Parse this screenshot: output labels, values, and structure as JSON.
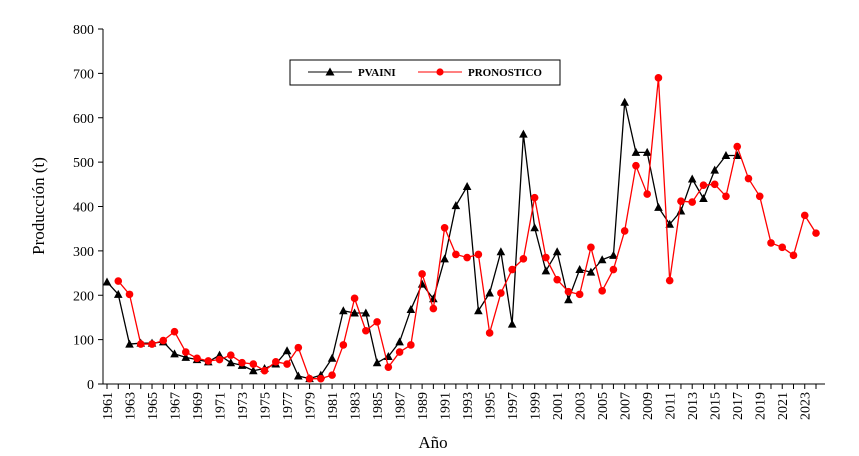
{
  "chart_data": {
    "type": "line",
    "xlabel": "Año",
    "ylabel": "Producción (t)",
    "ylim": [
      0,
      800
    ],
    "yticks": [
      0,
      100,
      200,
      300,
      400,
      500,
      600,
      700,
      800
    ],
    "xlim": [
      1961,
      2023
    ],
    "xtick_labels": [
      "1961",
      "1963",
      "1965",
      "1967",
      "1969",
      "1971",
      "1973",
      "1975",
      "1977",
      "1979",
      "1981",
      "1983",
      "1985",
      "1987",
      "1989",
      "1991",
      "1993",
      "1995",
      "1997",
      "1999",
      "2001",
      "2003",
      "2005",
      "2007",
      "2009",
      "2011",
      "2013",
      "2015",
      "2017",
      "2019",
      "2021",
      "2023"
    ],
    "grid": false,
    "legend_position": "top-center",
    "series": [
      {
        "name": "PVAINI",
        "color": "#000000",
        "marker": "triangle",
        "x": [
          1961,
          1962,
          1963,
          1964,
          1965,
          1966,
          1967,
          1968,
          1969,
          1970,
          1971,
          1972,
          1973,
          1974,
          1975,
          1976,
          1977,
          1978,
          1979,
          1980,
          1981,
          1982,
          1983,
          1984,
          1985,
          1986,
          1987,
          1988,
          1989,
          1990,
          1991,
          1992,
          1993,
          1994,
          1995,
          1996,
          1997,
          1998,
          1999,
          2000,
          2001,
          2002,
          2003,
          2004,
          2005,
          2006,
          2007,
          2008,
          2009,
          2010,
          2011,
          2012,
          2013,
          2014,
          2015,
          2016,
          2017
        ],
        "y": [
          230,
          202,
          90,
          92,
          92,
          95,
          68,
          60,
          55,
          50,
          65,
          48,
          42,
          30,
          35,
          45,
          75,
          18,
          12,
          20,
          58,
          165,
          160,
          160,
          48,
          62,
          95,
          168,
          225,
          192,
          282,
          402,
          445,
          165,
          205,
          298,
          135,
          563,
          352,
          255,
          298,
          190,
          258,
          252,
          280,
          290,
          635,
          522,
          522,
          398,
          360,
          390,
          462,
          418,
          482,
          515,
          515
        ]
      },
      {
        "name": "PRONOSTICO",
        "color": "#ff0000",
        "marker": "circle",
        "x": [
          1962,
          1963,
          1964,
          1965,
          1966,
          1967,
          1968,
          1969,
          1970,
          1971,
          1972,
          1973,
          1974,
          1975,
          1976,
          1977,
          1978,
          1979,
          1980,
          1981,
          1982,
          1983,
          1984,
          1985,
          1986,
          1987,
          1988,
          1989,
          1990,
          1991,
          1992,
          1993,
          1994,
          1995,
          1996,
          1997,
          1998,
          1999,
          2000,
          2001,
          2002,
          2003,
          2004,
          2005,
          2006,
          2007,
          2008,
          2009,
          2010,
          2011,
          2012,
          2013,
          2014,
          2015,
          2016,
          2017,
          2018,
          2019,
          2020,
          2021,
          2022,
          2023,
          2024
        ],
        "y": [
          232,
          202,
          90,
          90,
          98,
          118,
          72,
          58,
          52,
          55,
          65,
          48,
          45,
          30,
          50,
          45,
          82,
          12,
          12,
          20,
          88,
          193,
          120,
          140,
          38,
          72,
          88,
          248,
          170,
          352,
          292,
          285,
          292,
          115,
          205,
          258,
          282,
          420,
          285,
          235,
          208,
          202,
          308,
          210,
          258,
          345,
          492,
          428,
          690,
          233,
          412,
          410,
          448,
          450,
          423,
          535,
          463,
          423,
          318,
          308,
          290,
          380,
          340
        ]
      }
    ]
  }
}
